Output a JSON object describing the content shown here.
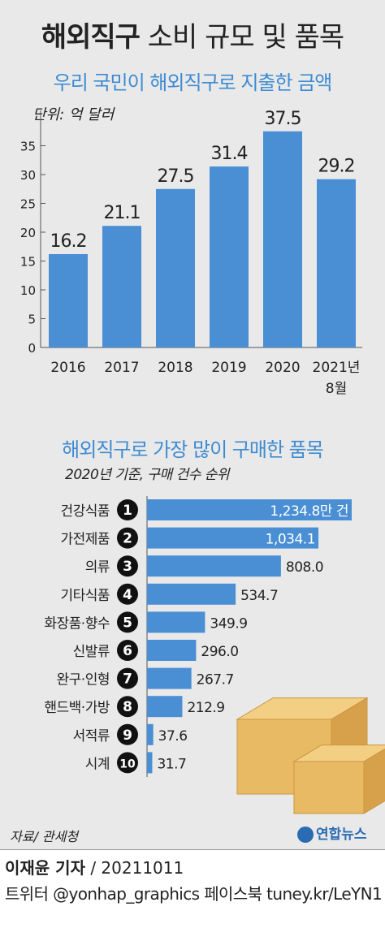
{
  "header": {
    "title_bold": "해외직구",
    "title_rest": "소비 규모 및 품목"
  },
  "colors": {
    "bar": "#4a8fd4",
    "accent": "#3e8bd2",
    "box": "#e9ba64"
  },
  "chart_data": [
    {
      "type": "bar",
      "title": "우리 국민이 해외직구로 지출한 금액",
      "unit": "단위: 억 달러",
      "categories": [
        "2016",
        "2017",
        "2018",
        "2019",
        "2020",
        "2021년 8월"
      ],
      "values": [
        16.2,
        21.1,
        27.5,
        31.4,
        37.5,
        29.2
      ],
      "value_labels": [
        "16.2",
        "21.1",
        "27.5",
        "31.4",
        "37.5",
        "29.2"
      ],
      "y_ticks": [
        "0",
        "5",
        "10",
        "15",
        "20",
        "25",
        "30",
        "35"
      ],
      "ylim": [
        0,
        40
      ]
    },
    {
      "type": "bar",
      "orientation": "horizontal",
      "title": "해외직구로 가장 많이 구매한 품목",
      "subtitle": "2020년 기준, 구매 건수 순위",
      "categories": [
        "건강식품",
        "가전제품",
        "의류",
        "기타식품",
        "화장품·향수",
        "신발류",
        "완구·인형",
        "핸드백·가방",
        "서적류",
        "시계"
      ],
      "ranks": [
        "1",
        "2",
        "3",
        "4",
        "5",
        "6",
        "7",
        "8",
        "9",
        "10"
      ],
      "values": [
        1234.8,
        1034.1,
        808.0,
        534.7,
        349.9,
        296.0,
        267.7,
        212.9,
        37.6,
        31.7
      ],
      "value_labels": [
        "1,234.8만 건",
        "1,034.1",
        "808.0",
        "534.7",
        "349.9",
        "296.0",
        "267.7",
        "212.9",
        "37.6",
        "31.7"
      ],
      "xlim": [
        0,
        1234.8
      ]
    }
  ],
  "footer": {
    "source": "자료/ 관세청",
    "logo": "연합뉴스",
    "reporter": "이재윤 기자",
    "date": " / 20211011",
    "social": "트위터 @yonhap_graphics  페이스북 tuney.kr/LeYN1"
  }
}
